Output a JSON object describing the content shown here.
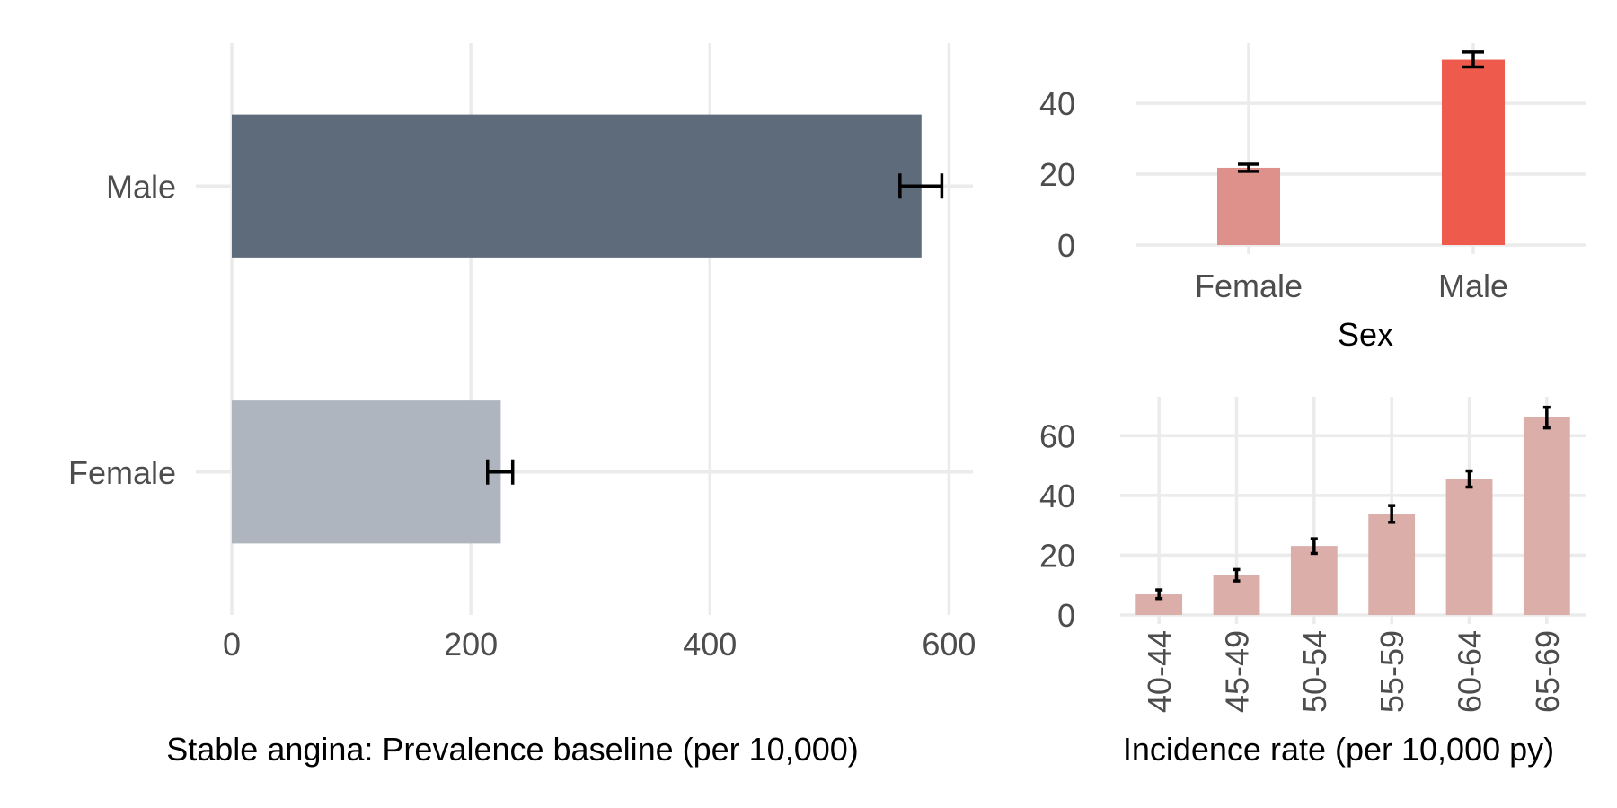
{
  "chart_data": [
    {
      "type": "bar",
      "orientation": "horizontal",
      "title": "",
      "xlabel": "Stable angina: Prevalence baseline (per 10,000)",
      "ylabel": "",
      "categories": [
        "Female",
        "Male"
      ],
      "values": [
        225,
        577
      ],
      "error_low": [
        214,
        559
      ],
      "error_high": [
        235,
        594
      ],
      "bar_colors": [
        "#aeb5be",
        "#5d6b7b"
      ],
      "xlim": [
        0,
        620
      ],
      "xticks": [
        0,
        200,
        400,
        600
      ],
      "grid": true,
      "legend": "none"
    },
    {
      "type": "bar",
      "title": "",
      "xlabel": "Sex",
      "ylabel": "",
      "categories": [
        "Female",
        "Male"
      ],
      "values": [
        21.8,
        52.3
      ],
      "error_low": [
        20.8,
        50.3
      ],
      "error_high": [
        22.8,
        54.5
      ],
      "bar_colors": [
        "#dd918a",
        "#ee5a4b"
      ],
      "ylim": [
        0,
        57
      ],
      "yticks": [
        0,
        20,
        40
      ],
      "grid": true,
      "legend": "none"
    },
    {
      "type": "bar",
      "title": "",
      "xlabel": "Incidence rate (per 10,000 py)",
      "ylabel": "",
      "categories": [
        "40-44",
        "45-49",
        "50-54",
        "55-59",
        "60-64",
        "65-69"
      ],
      "values": [
        6.9,
        13.3,
        23.1,
        33.8,
        45.5,
        66.1
      ],
      "error_low": [
        5.5,
        11.4,
        20.6,
        31.0,
        42.8,
        62.6
      ],
      "error_high": [
        8.4,
        15.2,
        25.5,
        36.6,
        48.2,
        69.5
      ],
      "bar_colors": [
        "#dbaea9"
      ],
      "ylim": [
        0,
        73
      ],
      "yticks": [
        0,
        20,
        40,
        60
      ],
      "xtick_rotation": 90,
      "grid": true,
      "legend": "none"
    }
  ]
}
